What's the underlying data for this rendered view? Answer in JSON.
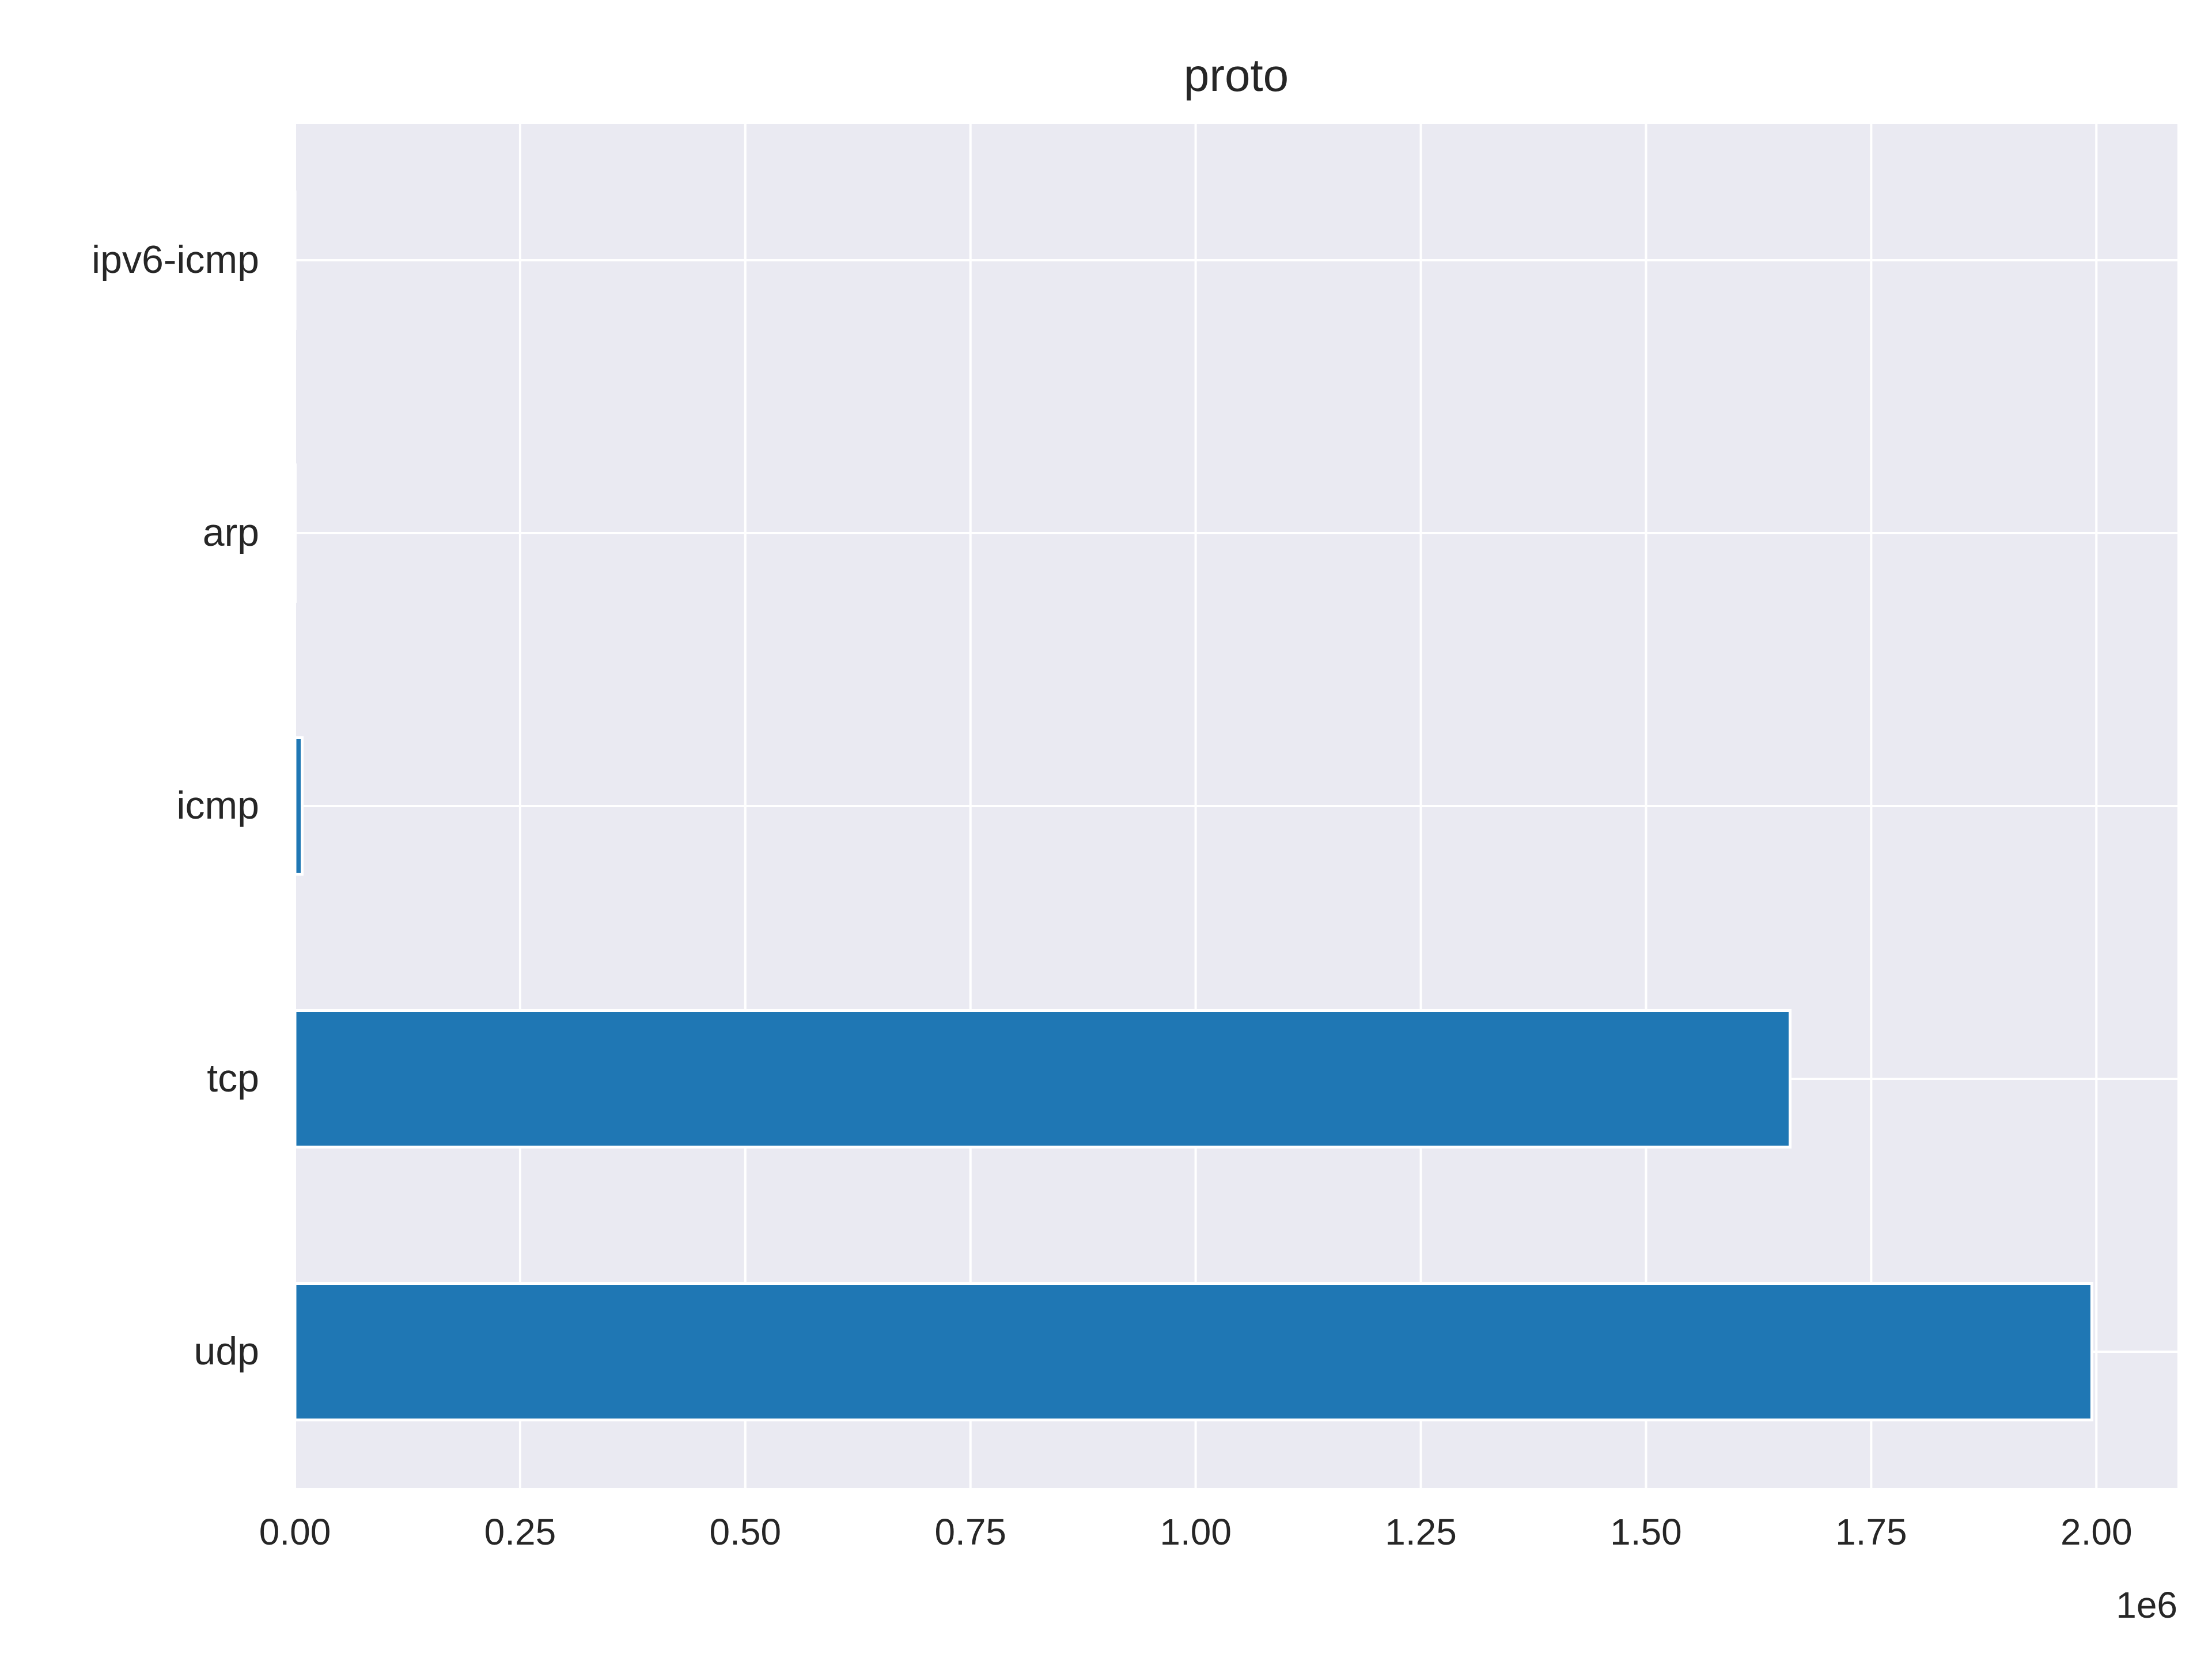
{
  "chart_data": {
    "type": "bar",
    "orientation": "horizontal",
    "title": "proto",
    "xlabel": "",
    "ylabel": "",
    "x_offset_label": "1e6",
    "categories": [
      "udp",
      "tcp",
      "icmp",
      "arp",
      "ipv6-icmp"
    ],
    "values": [
      1995000,
      1660000,
      8000,
      300,
      50
    ],
    "xlim": [
      0,
      2090000
    ],
    "x_ticks": [
      0,
      250000,
      500000,
      750000,
      1000000,
      1250000,
      1500000,
      1750000,
      2000000
    ],
    "x_tick_labels": [
      "0.00",
      "0.25",
      "0.50",
      "0.75",
      "1.00",
      "1.25",
      "1.50",
      "1.75",
      "2.00"
    ],
    "grid": true,
    "legend": "none",
    "colors": {
      "bar": "#1f77b4",
      "plot_background": "#eaeaf2",
      "grid": "#ffffff",
      "text": "#262626"
    }
  }
}
